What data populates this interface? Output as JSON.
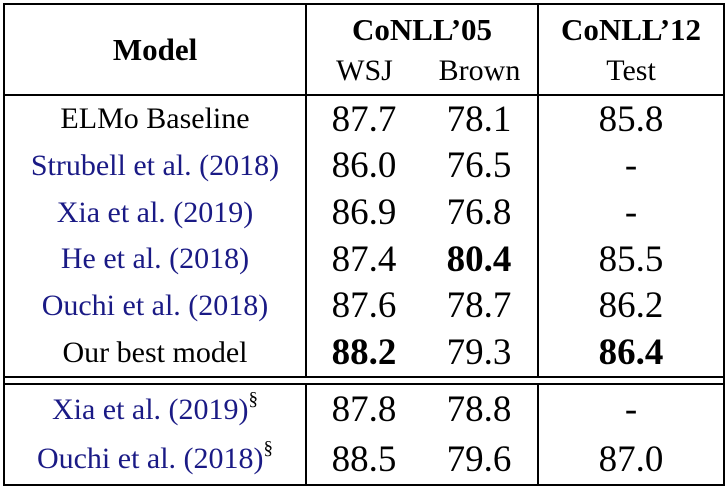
{
  "table": {
    "header": {
      "model_label": "Model",
      "group1_label": "CoNLL’05",
      "group1_sub1": "WSJ",
      "group1_sub2": "Brown",
      "group2_label": "CoNLL’12",
      "group2_sub1": "Test"
    },
    "section1": [
      {
        "model": "ELMo Baseline",
        "wsj": "87.7",
        "brown": "78.1",
        "test": "85.8"
      },
      {
        "model": "Strubell et al. (2018)",
        "wsj": "86.0",
        "brown": "76.5",
        "test": "-"
      },
      {
        "model": "Xia et al. (2019)",
        "wsj": "86.9",
        "brown": "76.8",
        "test": "-"
      },
      {
        "model": "He et al. (2018)",
        "wsj": "87.4",
        "brown": "80.4",
        "test": "85.5"
      },
      {
        "model": "Ouchi et al. (2018)",
        "wsj": "87.6",
        "brown": "78.7",
        "test": "86.2"
      },
      {
        "model": "Our best model",
        "wsj": "88.2",
        "brown": "79.3",
        "test": "86.4"
      }
    ],
    "section2": [
      {
        "model": "Xia et al. (2019)",
        "sup": "§",
        "wsj": "87.8",
        "brown": "78.8",
        "test": "-"
      },
      {
        "model": "Ouchi et al. (2018)",
        "sup": "§",
        "wsj": "88.5",
        "brown": "79.6",
        "test": "87.0"
      }
    ],
    "colors": {
      "citation_blue": "#1a1a85",
      "text_black": "#000000",
      "border_black": "#000000",
      "background": "#ffffff"
    }
  }
}
